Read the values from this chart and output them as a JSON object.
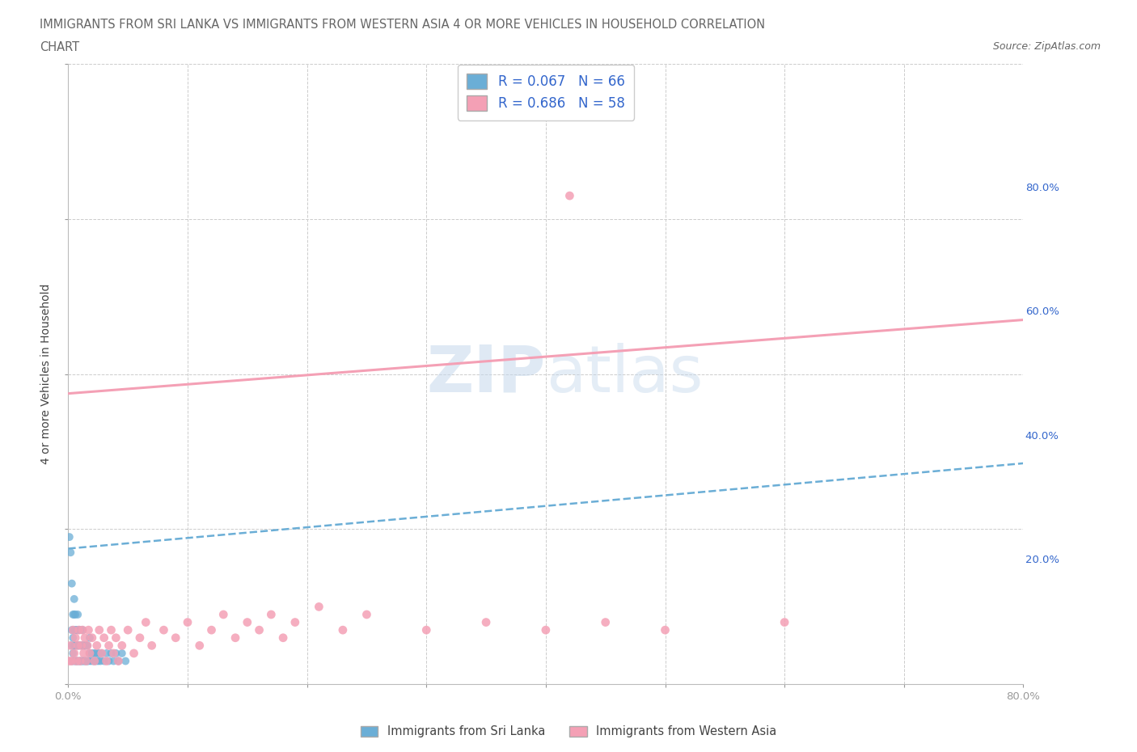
{
  "title_line1": "IMMIGRANTS FROM SRI LANKA VS IMMIGRANTS FROM WESTERN ASIA 4 OR MORE VEHICLES IN HOUSEHOLD CORRELATION",
  "title_line2": "CHART",
  "source_text": "Source: ZipAtlas.com",
  "ylabel": "4 or more Vehicles in Household",
  "xlim": [
    0.0,
    0.8
  ],
  "ylim": [
    0.0,
    0.8
  ],
  "sri_lanka_color": "#6baed6",
  "western_asia_color": "#f4a0b5",
  "sri_lanka_R": 0.067,
  "sri_lanka_N": 66,
  "western_asia_R": 0.686,
  "western_asia_N": 58,
  "legend_label_1": "Immigrants from Sri Lanka",
  "legend_label_2": "Immigrants from Western Asia",
  "watermark_text": "ZIPAtlas",
  "background_color": "#ffffff",
  "grid_color": "#cccccc",
  "title_color": "#666666",
  "label_color": "#3366cc",
  "sri_lanka_trend": [
    0.0,
    0.8,
    0.175,
    0.285
  ],
  "western_asia_trend": [
    0.0,
    0.8,
    0.375,
    0.47
  ],
  "sri_lanka_scatter": [
    [
      0.001,
      0.19
    ],
    [
      0.002,
      0.17
    ],
    [
      0.003,
      0.13
    ],
    [
      0.003,
      0.03
    ],
    [
      0.003,
      0.05
    ],
    [
      0.003,
      0.07
    ],
    [
      0.004,
      0.04
    ],
    [
      0.004,
      0.06
    ],
    [
      0.004,
      0.09
    ],
    [
      0.005,
      0.03
    ],
    [
      0.005,
      0.05
    ],
    [
      0.005,
      0.07
    ],
    [
      0.005,
      0.09
    ],
    [
      0.005,
      0.11
    ],
    [
      0.006,
      0.03
    ],
    [
      0.006,
      0.05
    ],
    [
      0.006,
      0.07
    ],
    [
      0.006,
      0.09
    ],
    [
      0.007,
      0.03
    ],
    [
      0.007,
      0.05
    ],
    [
      0.007,
      0.07
    ],
    [
      0.008,
      0.03
    ],
    [
      0.008,
      0.05
    ],
    [
      0.008,
      0.07
    ],
    [
      0.008,
      0.09
    ],
    [
      0.009,
      0.03
    ],
    [
      0.009,
      0.05
    ],
    [
      0.009,
      0.07
    ],
    [
      0.01,
      0.03
    ],
    [
      0.01,
      0.05
    ],
    [
      0.01,
      0.07
    ],
    [
      0.011,
      0.03
    ],
    [
      0.011,
      0.05
    ],
    [
      0.012,
      0.03
    ],
    [
      0.012,
      0.05
    ],
    [
      0.012,
      0.07
    ],
    [
      0.013,
      0.03
    ],
    [
      0.013,
      0.05
    ],
    [
      0.014,
      0.03
    ],
    [
      0.014,
      0.05
    ],
    [
      0.015,
      0.03
    ],
    [
      0.015,
      0.05
    ],
    [
      0.016,
      0.03
    ],
    [
      0.016,
      0.05
    ],
    [
      0.017,
      0.03
    ],
    [
      0.018,
      0.04
    ],
    [
      0.018,
      0.06
    ],
    [
      0.019,
      0.03
    ],
    [
      0.02,
      0.04
    ],
    [
      0.021,
      0.03
    ],
    [
      0.022,
      0.04
    ],
    [
      0.023,
      0.03
    ],
    [
      0.024,
      0.04
    ],
    [
      0.025,
      0.03
    ],
    [
      0.026,
      0.04
    ],
    [
      0.027,
      0.03
    ],
    [
      0.028,
      0.04
    ],
    [
      0.03,
      0.03
    ],
    [
      0.032,
      0.04
    ],
    [
      0.034,
      0.03
    ],
    [
      0.036,
      0.04
    ],
    [
      0.038,
      0.03
    ],
    [
      0.04,
      0.04
    ],
    [
      0.042,
      0.03
    ],
    [
      0.045,
      0.04
    ],
    [
      0.048,
      0.03
    ]
  ],
  "western_asia_scatter": [
    [
      0.001,
      0.03
    ],
    [
      0.002,
      0.05
    ],
    [
      0.003,
      0.03
    ],
    [
      0.004,
      0.07
    ],
    [
      0.005,
      0.04
    ],
    [
      0.006,
      0.06
    ],
    [
      0.007,
      0.03
    ],
    [
      0.008,
      0.05
    ],
    [
      0.009,
      0.07
    ],
    [
      0.01,
      0.03
    ],
    [
      0.011,
      0.05
    ],
    [
      0.012,
      0.07
    ],
    [
      0.013,
      0.04
    ],
    [
      0.014,
      0.06
    ],
    [
      0.015,
      0.03
    ],
    [
      0.016,
      0.05
    ],
    [
      0.017,
      0.07
    ],
    [
      0.018,
      0.04
    ],
    [
      0.02,
      0.06
    ],
    [
      0.022,
      0.03
    ],
    [
      0.024,
      0.05
    ],
    [
      0.026,
      0.07
    ],
    [
      0.028,
      0.04
    ],
    [
      0.03,
      0.06
    ],
    [
      0.032,
      0.03
    ],
    [
      0.034,
      0.05
    ],
    [
      0.036,
      0.07
    ],
    [
      0.038,
      0.04
    ],
    [
      0.04,
      0.06
    ],
    [
      0.042,
      0.03
    ],
    [
      0.045,
      0.05
    ],
    [
      0.05,
      0.07
    ],
    [
      0.055,
      0.04
    ],
    [
      0.06,
      0.06
    ],
    [
      0.065,
      0.08
    ],
    [
      0.07,
      0.05
    ],
    [
      0.08,
      0.07
    ],
    [
      0.09,
      0.06
    ],
    [
      0.1,
      0.08
    ],
    [
      0.11,
      0.05
    ],
    [
      0.12,
      0.07
    ],
    [
      0.13,
      0.09
    ],
    [
      0.14,
      0.06
    ],
    [
      0.15,
      0.08
    ],
    [
      0.16,
      0.07
    ],
    [
      0.17,
      0.09
    ],
    [
      0.18,
      0.06
    ],
    [
      0.19,
      0.08
    ],
    [
      0.21,
      0.1
    ],
    [
      0.23,
      0.07
    ],
    [
      0.25,
      0.09
    ],
    [
      0.3,
      0.07
    ],
    [
      0.35,
      0.08
    ],
    [
      0.4,
      0.07
    ],
    [
      0.45,
      0.08
    ],
    [
      0.5,
      0.07
    ],
    [
      0.6,
      0.08
    ],
    [
      0.42,
      0.63
    ]
  ]
}
